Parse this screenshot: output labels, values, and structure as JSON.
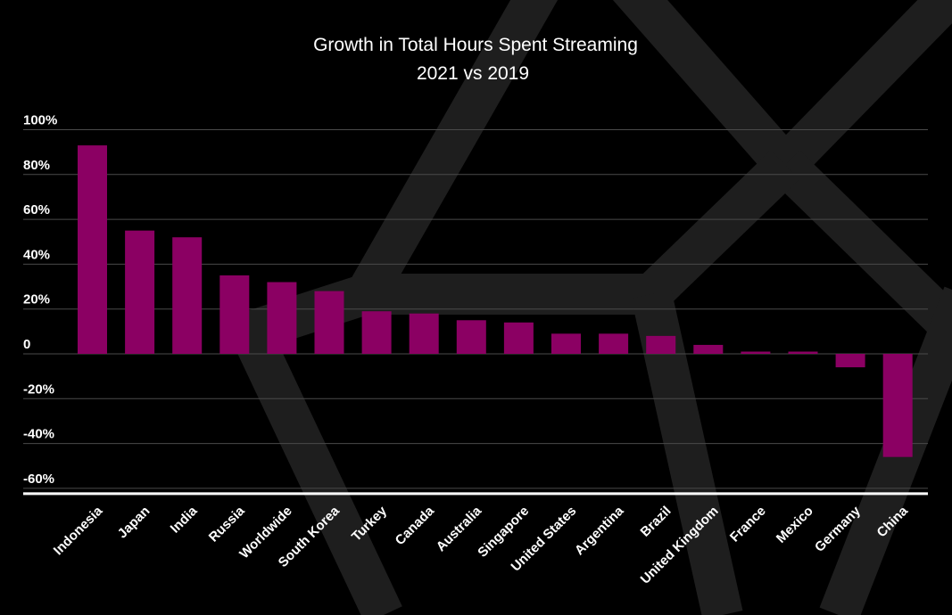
{
  "chart_data": {
    "type": "bar",
    "title": "Growth in Total Hours Spent Streaming",
    "subtitle": "2021 vs 2019",
    "xlabel": "",
    "ylabel": "",
    "categories": [
      "Indonesia",
      "Japan",
      "India",
      "Russia",
      "Worldwide",
      "South Korea",
      "Turkey",
      "Canada",
      "Australia",
      "Singapore",
      "United States",
      "Argentina",
      "Brazil",
      "United Kingdom",
      "France",
      "Mexico",
      "Germany",
      "China"
    ],
    "values": [
      93,
      55,
      52,
      35,
      32,
      28,
      19,
      18,
      15,
      14,
      9,
      9,
      8,
      4,
      1,
      1,
      -6,
      -46
    ],
    "yticks": [
      100,
      80,
      60,
      40,
      20,
      0,
      -20,
      -40,
      -60
    ],
    "ytick_labels": [
      "100%",
      "80%",
      "60%",
      "40%",
      "20%",
      "0",
      "-20%",
      "-40%",
      "-60%"
    ],
    "ylim": [
      -60,
      100
    ],
    "grid": true,
    "legend": "none",
    "bar_color": "#8b0063",
    "background_color": "#000000",
    "grid_color": "#4a4a4a",
    "text_color": "#ffffff"
  }
}
